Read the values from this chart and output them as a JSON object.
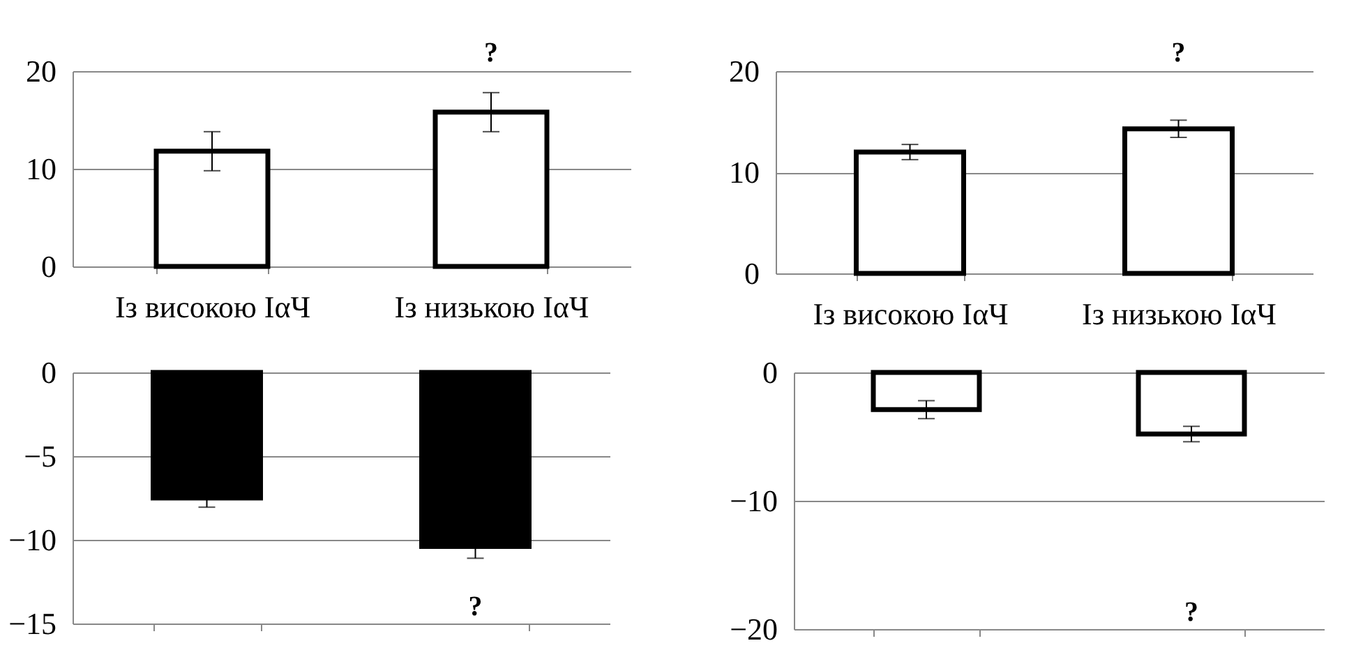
{
  "chart_data": [
    {
      "type": "bar",
      "categories": [
        "Із високою IαЧ",
        "Із низькою IαЧ"
      ],
      "values": [
        11.8,
        15.8
      ],
      "errors": [
        2,
        2
      ],
      "color": "#ffffff",
      "ylim": [
        0,
        20
      ],
      "yticks": [
        0,
        10,
        20
      ],
      "grid": "y",
      "annotations": [
        "?"
      ]
    },
    {
      "type": "bar",
      "categories": [
        "Із високою IαЧ",
        "Із низькою IαЧ"
      ],
      "values": [
        12.0,
        14.3
      ],
      "errors": [
        0.75,
        0.85
      ],
      "color": "#ffffff",
      "ylim": [
        0,
        20
      ],
      "yticks": [
        0,
        10,
        20
      ],
      "grid": "y",
      "annotations": [
        "?"
      ]
    },
    {
      "type": "bar",
      "categories": [
        null,
        null
      ],
      "values": [
        -7.5,
        -10.4
      ],
      "errors": [
        0.55,
        0.7
      ],
      "color": "#000000",
      "ylim": [
        -15,
        0
      ],
      "yticks": [
        -15,
        -10,
        -5,
        0
      ],
      "grid": "y",
      "tick_labels": "y",
      "annotations": [
        "?"
      ]
    },
    {
      "type": "bar",
      "categories": [
        null,
        null
      ],
      "values": [
        -2.9,
        -4.8
      ],
      "errors": [
        0.7,
        0.6
      ],
      "color": "#ffffff",
      "ylim": [
        -20,
        0
      ],
      "yticks": [
        -20,
        -10,
        0
      ],
      "grid": "y",
      "tick_labels": "y",
      "annotations": [
        "?"
      ]
    }
  ]
}
